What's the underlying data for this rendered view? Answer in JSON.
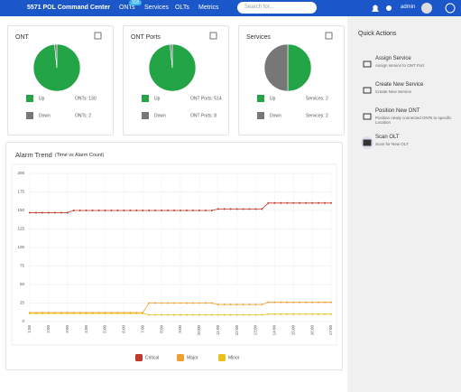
{
  "header": {
    "title": "5571 POL Command Center",
    "nav": [
      "ONTs",
      "Services",
      "OLTs",
      "Metrics"
    ],
    "badge": "118",
    "search_placeholder": "Search for...",
    "user": "admin"
  },
  "quick_actions": {
    "title": "Quick Actions",
    "items": [
      {
        "title": "Assign Service",
        "desc": "Assign service to ONT Port"
      },
      {
        "title": "Create New Service",
        "desc": "Create New Service"
      },
      {
        "title": "Position New ONT",
        "desc": "Position newly connected ONTs to specific Location"
      },
      {
        "title": "Scan OLT",
        "desc": "Scan for New OLT"
      }
    ]
  },
  "chart_data": [
    {
      "type": "pie",
      "title": "ONT",
      "categories": [
        "Up",
        "Down"
      ],
      "values": [
        130,
        2
      ],
      "value_labels": [
        "ONTs: 130",
        "ONTs: 2"
      ],
      "colors": [
        "#22a447",
        "#777777"
      ]
    },
    {
      "type": "pie",
      "title": "ONT Ports",
      "categories": [
        "Up",
        "Down"
      ],
      "values": [
        514,
        8
      ],
      "value_labels": [
        "ONT Ports: 514",
        "ONT Ports: 8"
      ],
      "colors": [
        "#22a447",
        "#777777"
      ]
    },
    {
      "type": "pie",
      "title": "Services",
      "categories": [
        "Up",
        "Down"
      ],
      "values": [
        2,
        2
      ],
      "value_labels": [
        "Services: 2",
        "Services: 2"
      ],
      "colors": [
        "#22a447",
        "#777777"
      ]
    },
    {
      "type": "line",
      "title": "Alarm Trend",
      "subtitle": "(Time vs Alarm Count)",
      "legend": "bottom",
      "grid": true,
      "categories": [
        "1:00",
        null,
        null,
        "2:00",
        null,
        null,
        "3:00",
        null,
        null,
        "4:00",
        null,
        null,
        "5:00",
        null,
        null,
        "6:00",
        null,
        null,
        "7:00",
        null,
        null,
        "8:00",
        null,
        null,
        "9:00",
        null,
        null,
        "10:00",
        null,
        null,
        "11:00",
        null,
        null,
        "12:00",
        null,
        null,
        "13:00",
        null,
        null,
        "14:00",
        null,
        null,
        "15:00",
        null,
        null,
        "16:00",
        null,
        null,
        "17:00"
      ],
      "ylim": [
        0,
        200
      ],
      "yticks": [
        0,
        25,
        50,
        75,
        100,
        125,
        150,
        175,
        200
      ],
      "series": [
        {
          "name": "Critical",
          "color": "#c0392b",
          "values": [
            147,
            147,
            147,
            147,
            147,
            147,
            147,
            150,
            150,
            150,
            150,
            150,
            150,
            150,
            150,
            150,
            150,
            150,
            150,
            150,
            150,
            150,
            150,
            150,
            150,
            150,
            150,
            150,
            150,
            150,
            152,
            152,
            152,
            152,
            152,
            152,
            152,
            152,
            160,
            160,
            160,
            160,
            160,
            160,
            160,
            160,
            160,
            160,
            160
          ]
        },
        {
          "name": "Major",
          "color": "#f0a030",
          "values": [
            12,
            12,
            12,
            12,
            12,
            12,
            12,
            12,
            12,
            12,
            12,
            12,
            12,
            12,
            12,
            12,
            12,
            12,
            12,
            25,
            25,
            25,
            25,
            25,
            25,
            25,
            25,
            25,
            25,
            25,
            23,
            23,
            23,
            23,
            23,
            23,
            23,
            23,
            26,
            26,
            26,
            26,
            26,
            26,
            26,
            26,
            26,
            26,
            26
          ]
        },
        {
          "name": "Minor",
          "color": "#e8c21a",
          "values": [
            11,
            11,
            11,
            11,
            11,
            11,
            11,
            11,
            11,
            11,
            11,
            11,
            11,
            11,
            11,
            11,
            11,
            11,
            11,
            9,
            9,
            9,
            9,
            9,
            9,
            9,
            9,
            9,
            9,
            9,
            9,
            9,
            9,
            9,
            9,
            9,
            9,
            9,
            10,
            10,
            10,
            10,
            10,
            10,
            10,
            10,
            10,
            10,
            10
          ]
        }
      ]
    }
  ]
}
